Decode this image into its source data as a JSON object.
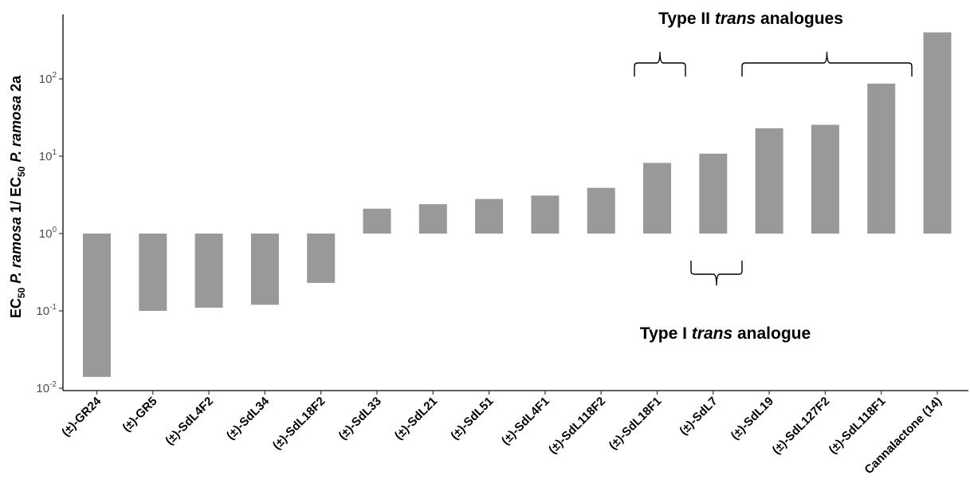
{
  "chart_data": {
    "type": "bar",
    "title": "",
    "xlabel": "",
    "ylabel_parts": [
      "EC",
      "50",
      " P. ramosa",
      " 1/ EC",
      "50",
      " P. ramosa",
      " 2a"
    ],
    "yscale": "log",
    "ylim": [
      0.01,
      400
    ],
    "baseline": 1,
    "yticks": [
      {
        "value": 0.01,
        "base": "10",
        "exp": "-2"
      },
      {
        "value": 0.1,
        "base": "10",
        "exp": "-1"
      },
      {
        "value": 1,
        "base": "10",
        "exp": "0"
      },
      {
        "value": 10,
        "base": "10",
        "exp": "1"
      },
      {
        "value": 100,
        "base": "10",
        "exp": "2"
      }
    ],
    "categories": [
      "(±)-GR24",
      "(±)-GR5",
      "(±)-SdL4F2",
      "(±)-SdL34",
      "(±)-SdL18F2",
      "(±)-SdL33",
      "(±)-SdL21",
      "(±)-SdL51",
      "(±)-SdL4F1",
      "(±)-SdL118F2",
      "(±)-SdL18F1",
      "(±)-SdL7",
      "(±)-SdL19",
      "(±)-SdL127F2",
      "(±)-SdL118F1",
      "Cannalactone (14)"
    ],
    "values": [
      0.014,
      0.1,
      0.11,
      0.12,
      0.23,
      2.1,
      2.4,
      2.8,
      3.1,
      3.9,
      8.2,
      10.8,
      23,
      25.5,
      87,
      400
    ],
    "bar_color": "#999999",
    "grid": false,
    "legend": "none",
    "annotations": [
      {
        "parts": [
          {
            "text": "Type II ",
            "italic": false
          },
          {
            "text": "trans",
            "italic": true
          },
          {
            "text": " analogues",
            "italic": false
          }
        ],
        "brackets_over": [
          [
            10,
            10
          ],
          [
            12,
            14
          ]
        ],
        "position": "above"
      },
      {
        "parts": [
          {
            "text": "Type I ",
            "italic": false
          },
          {
            "text": "trans",
            "italic": true
          },
          {
            "text": " analogue",
            "italic": false
          }
        ],
        "brackets_over": [
          [
            11,
            11
          ]
        ],
        "position": "below"
      }
    ]
  }
}
